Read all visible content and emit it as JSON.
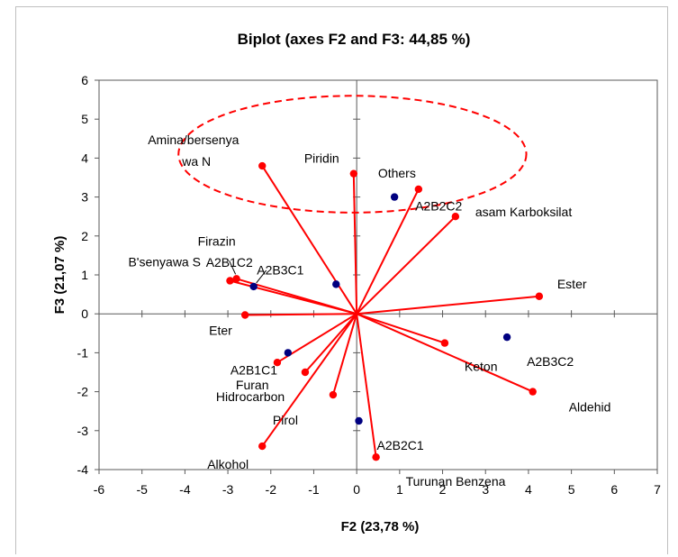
{
  "chart_data": {
    "type": "scatter",
    "subtype": "biplot",
    "title": "Biplot (axes F2 and F3: 44,85 %)",
    "xlabel": "F2 (23,78 %)",
    "ylabel": "F3 (21,07 %)",
    "xlim": [
      -6,
      7
    ],
    "ylim": [
      -4,
      6
    ],
    "xticks": [
      "-6",
      "-5",
      "-4",
      "-3",
      "-2",
      "-1",
      "0",
      "1",
      "2",
      "3",
      "4",
      "5",
      "6",
      "7"
    ],
    "yticks": [
      "-4",
      "-3",
      "-2",
      "-1",
      "0",
      "1",
      "2",
      "3",
      "4",
      "5",
      "6"
    ],
    "grid": false,
    "variables": {
      "color": "#ff0000",
      "points": [
        {
          "label": "Amina/bersenya wa N",
          "lines": [
            "Amina/bersenya",
            "wa N"
          ],
          "x": -2.2,
          "y": 3.8
        },
        {
          "label": "Piridin",
          "x": -0.07,
          "y": 3.6
        },
        {
          "label": "Others",
          "x": 1.44,
          "y": 3.2
        },
        {
          "label": "asam Karboksilat",
          "x": 2.3,
          "y": 2.5
        },
        {
          "label": "Firazin",
          "x": -2.8,
          "y": 0.9
        },
        {
          "label": "B'senyawa S",
          "x": -2.95,
          "y": 0.85
        },
        {
          "label": "Ester",
          "x": 4.25,
          "y": 0.45
        },
        {
          "label": "Eter",
          "x": -2.6,
          "y": -0.03
        },
        {
          "label": "Keton",
          "x": 2.05,
          "y": -0.75
        },
        {
          "label": "Aldehid",
          "x": 4.1,
          "y": -2.0
        },
        {
          "label": "Furan",
          "x": -1.85,
          "y": -1.25
        },
        {
          "label": "Hidrocarbon",
          "x": -1.2,
          "y": -1.5
        },
        {
          "label": "Pirol",
          "x": -0.55,
          "y": -2.08
        },
        {
          "label": "Alkohol",
          "x": -2.2,
          "y": -3.4
        },
        {
          "label": "Turunan Benzena",
          "x": 0.45,
          "y": -3.68
        }
      ]
    },
    "observations": {
      "color": "#000080",
      "points": [
        {
          "label": "A2B2C2",
          "x": 0.88,
          "y": 3.0
        },
        {
          "label": "A2B1C2",
          "x": -2.4,
          "y": 0.7
        },
        {
          "label": "A2B3C1",
          "x": -0.48,
          "y": 0.76
        },
        {
          "label": "A2B3C2",
          "x": 3.5,
          "y": -0.6
        },
        {
          "label": "A2B1C1",
          "x": -1.6,
          "y": -1.0
        },
        {
          "label": "A2B2C1",
          "x": 0.05,
          "y": -2.75
        }
      ]
    },
    "ellipse": {
      "cx": -0.1,
      "cy": 4.1,
      "rx": 4.05,
      "ry": 1.5,
      "color": "#ff0000",
      "style": "dashed"
    }
  }
}
